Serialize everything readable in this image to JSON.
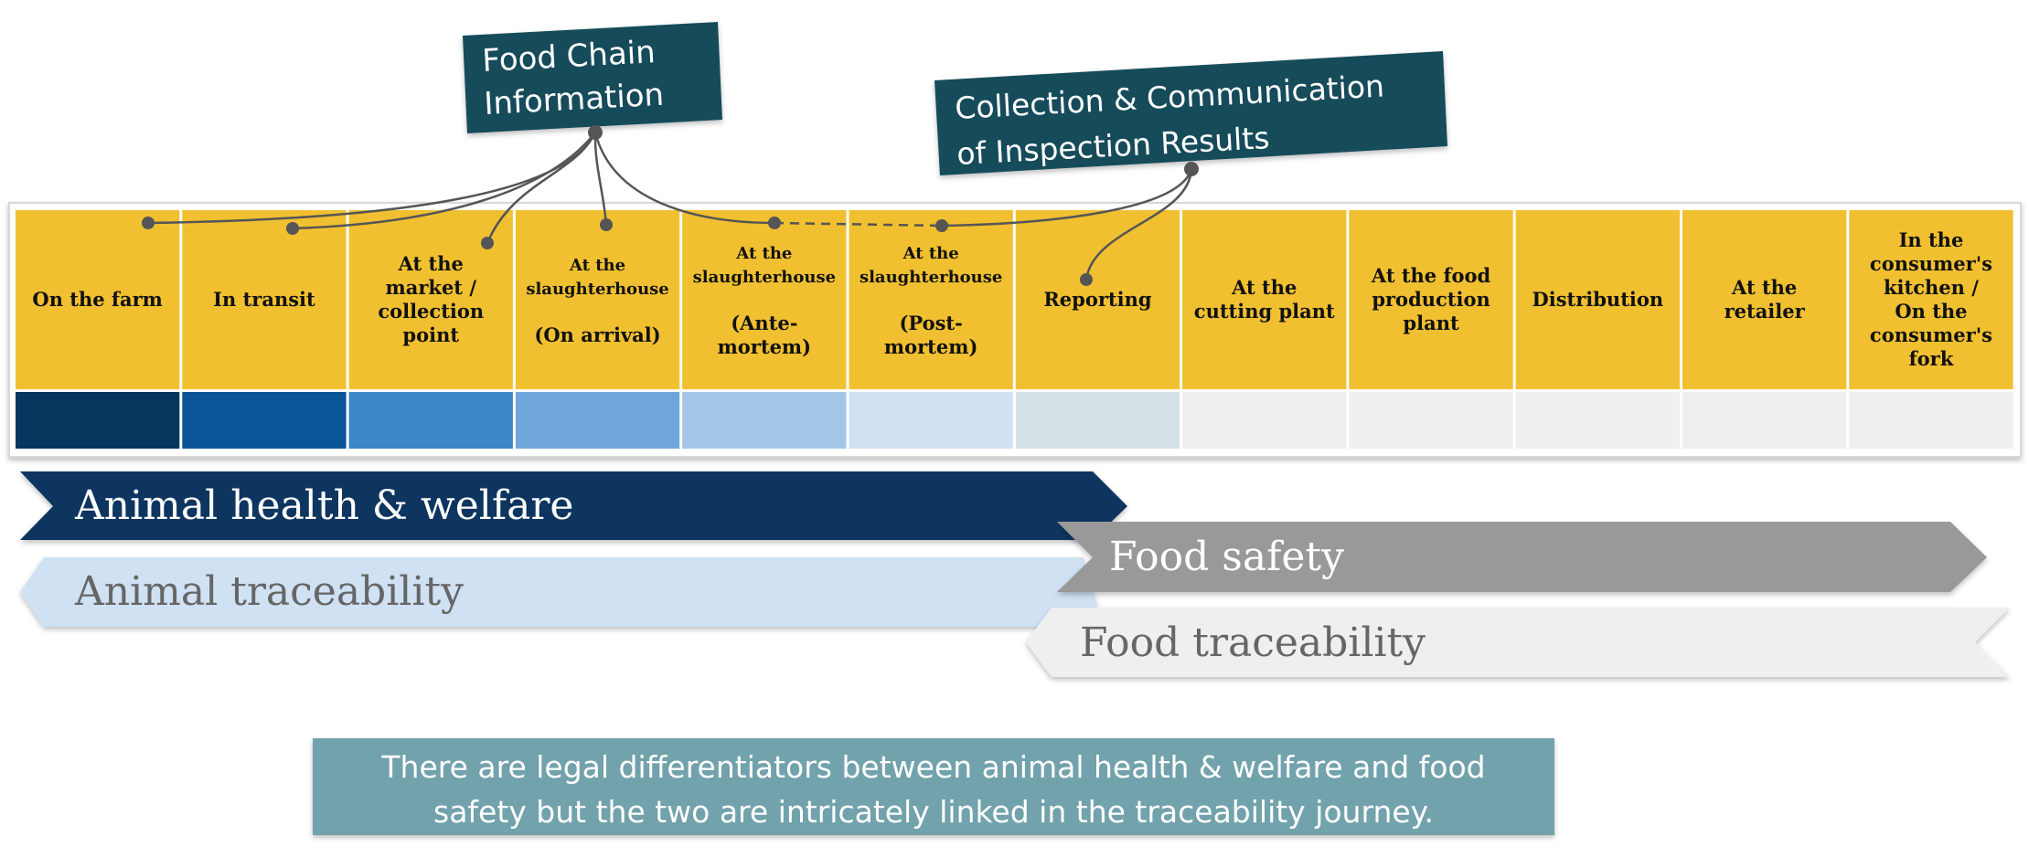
{
  "callouts": {
    "food_chain_line1": "Food Chain",
    "food_chain_line2": "Information",
    "collection_line1": "Collection & Communication",
    "collection_line2": "of Inspection Results"
  },
  "stages": [
    {
      "lines": [
        "On the farm"
      ]
    },
    {
      "lines": [
        "In transit"
      ]
    },
    {
      "lines": [
        "At the",
        "market /",
        "collection",
        "point"
      ]
    },
    {
      "lines": [
        "At the",
        "slaughterhouse",
        "",
        "(On arrival)"
      ]
    },
    {
      "lines": [
        "At the",
        "slaughterhouse",
        "",
        "(Ante-",
        "mortem)"
      ]
    },
    {
      "lines": [
        "At the",
        "slaughterhouse",
        "",
        "(Post-",
        "mortem)"
      ]
    },
    {
      "lines": [
        "Reporting"
      ]
    },
    {
      "lines": [
        "At the",
        "cutting plant"
      ]
    },
    {
      "lines": [
        "At the food",
        "production",
        "plant"
      ]
    },
    {
      "lines": [
        "Distribution"
      ]
    },
    {
      "lines": [
        "At the",
        "retailer"
      ]
    },
    {
      "lines": [
        "In the",
        "consumer's",
        "kitchen /",
        "On the",
        "consumer's",
        "fork"
      ]
    }
  ],
  "colors": {
    "header": "#f1c030",
    "strip": [
      "#07365f",
      "#0b5499",
      "#3d86c8",
      "#6ea6dc",
      "#a2c5e8",
      "#cfe1f3",
      "#d4e2e7",
      "#efefef",
      "#efefef",
      "#efefef",
      "#efefef",
      "#efefef"
    ],
    "callout": "#144c5a",
    "note": "#72a2ab"
  },
  "bands": {
    "animal_health": "Animal health & welfare",
    "animal_traceability": "Animal traceability",
    "food_safety": "Food safety",
    "food_traceability": "Food traceability"
  },
  "note": {
    "line1": "There are legal differentiators between animal health & welfare and food",
    "line2": "safety but the two are intricately linked in the traceability journey."
  }
}
